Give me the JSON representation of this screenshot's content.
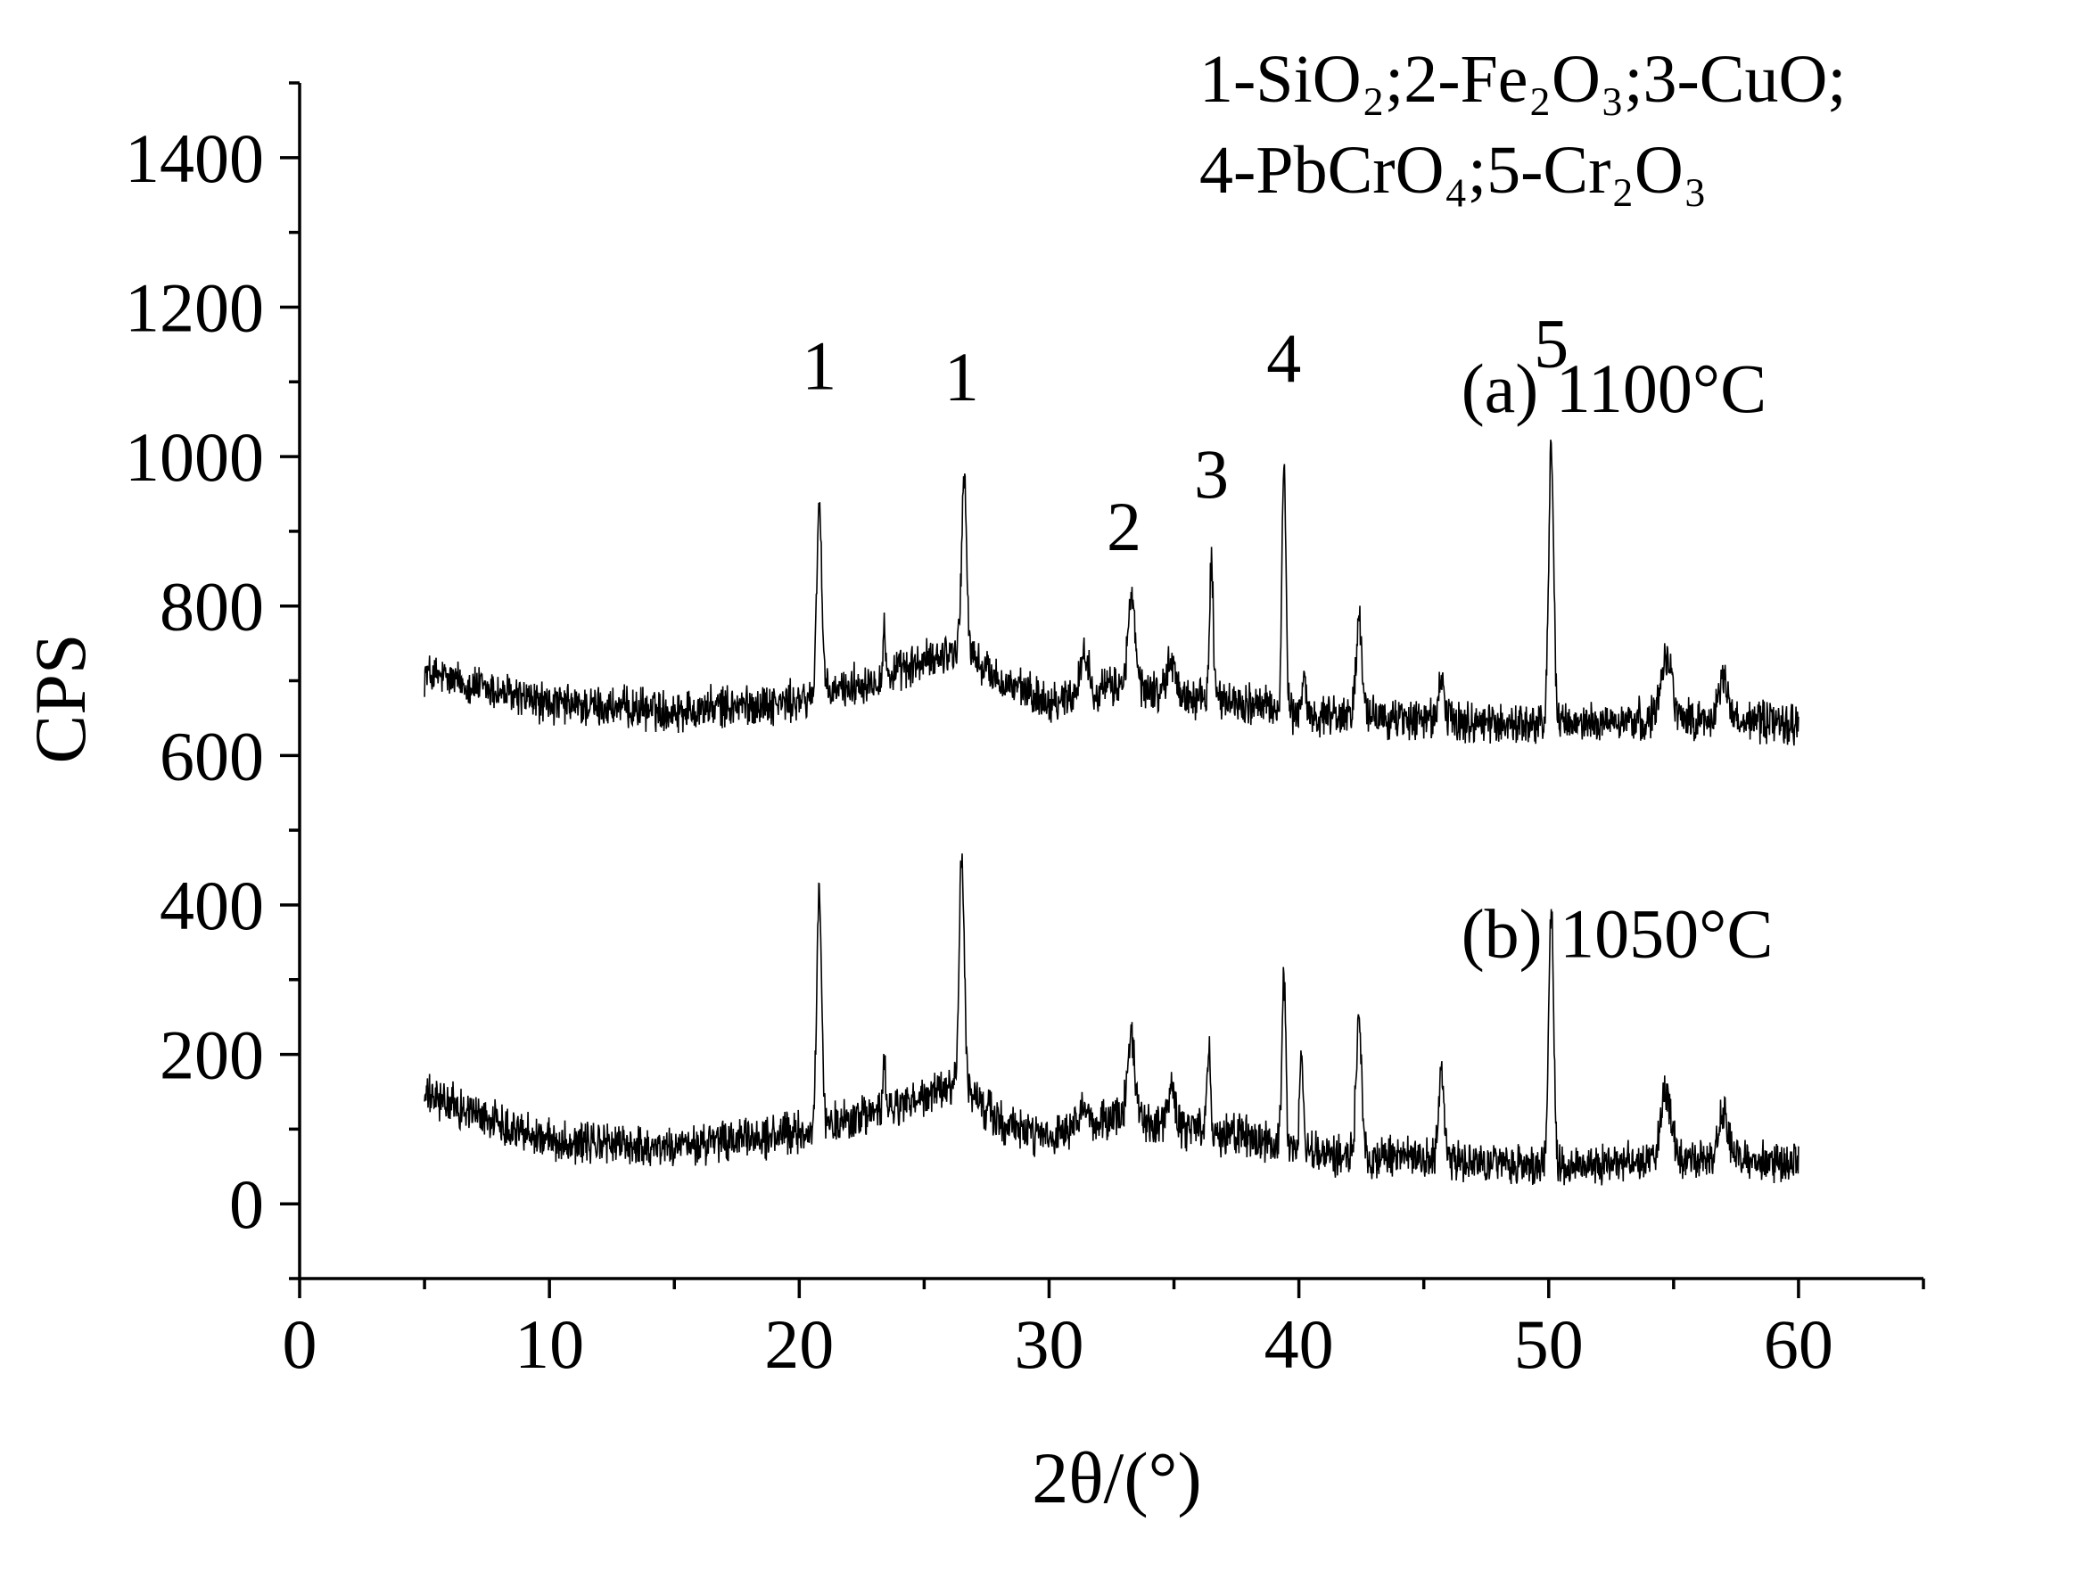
{
  "chart_data": {
    "type": "line",
    "title": "",
    "xlabel": "2θ/(°)",
    "ylabel": "CPS",
    "xlim": [
      0,
      65
    ],
    "ylim": [
      -100,
      1500
    ],
    "x_ticks": [
      0,
      10,
      20,
      30,
      40,
      50,
      60
    ],
    "y_ticks": [
      0,
      200,
      400,
      600,
      800,
      1000,
      1200,
      1400
    ],
    "grid": false,
    "legend_lines": [
      "1-SiO₂;2-Fe₂O₃;3-CuO;",
      "4-PbCrO₄;5-Cr₂O₃"
    ],
    "series": [
      {
        "name": "(a) 1100°C",
        "color": "#000000",
        "x_range": [
          5,
          60
        ],
        "baseline": [
          [
            5,
            710
          ],
          [
            10,
            668
          ],
          [
            15,
            660
          ],
          [
            20,
            672
          ],
          [
            24,
            712
          ],
          [
            26.5,
            745
          ],
          [
            28,
            700
          ],
          [
            30,
            672
          ],
          [
            33,
            695
          ],
          [
            35,
            680
          ],
          [
            38,
            670
          ],
          [
            40,
            655
          ],
          [
            45,
            648
          ],
          [
            50,
            640
          ],
          [
            55,
            650
          ],
          [
            60,
            643
          ]
        ],
        "noise_amplitude": 22,
        "peaks": [
          {
            "x": 20.8,
            "y": 940,
            "width": 0.14
          },
          {
            "x": 23.4,
            "y": 780,
            "width": 0.06
          },
          {
            "x": 26.6,
            "y": 970,
            "width": 0.14
          },
          {
            "x": 31.4,
            "y": 735,
            "width": 0.25
          },
          {
            "x": 33.3,
            "y": 810,
            "width": 0.2
          },
          {
            "x": 34.9,
            "y": 725,
            "width": 0.25
          },
          {
            "x": 36.5,
            "y": 870,
            "width": 0.1
          },
          {
            "x": 39.4,
            "y": 990,
            "width": 0.11
          },
          {
            "x": 40.2,
            "y": 710,
            "width": 0.1
          },
          {
            "x": 42.4,
            "y": 775,
            "width": 0.18
          },
          {
            "x": 45.7,
            "y": 705,
            "width": 0.15
          },
          {
            "x": 50.1,
            "y": 1020,
            "width": 0.14
          },
          {
            "x": 54.7,
            "y": 740,
            "width": 0.3
          },
          {
            "x": 57.0,
            "y": 705,
            "width": 0.25
          }
        ],
        "peak_labels": [
          {
            "text": "1",
            "x": 20.8,
            "y": 1090
          },
          {
            "text": "1",
            "x": 26.5,
            "y": 1075
          },
          {
            "text": "2",
            "x": 33.0,
            "y": 875
          },
          {
            "text": "3",
            "x": 36.5,
            "y": 945
          },
          {
            "text": "4",
            "x": 39.4,
            "y": 1100
          },
          {
            "text": "5",
            "x": 50.1,
            "y": 1120
          }
        ],
        "label_position": {
          "x": 46.5,
          "y": 1060
        }
      },
      {
        "name": "(b) 1050°C",
        "color": "#000000",
        "x_range": [
          5,
          60
        ],
        "baseline": [
          [
            5,
            145
          ],
          [
            10,
            85
          ],
          [
            15,
            75
          ],
          [
            20,
            95
          ],
          [
            24,
            130
          ],
          [
            26.5,
            160
          ],
          [
            28,
            110
          ],
          [
            30,
            85
          ],
          [
            33,
            120
          ],
          [
            35,
            100
          ],
          [
            38,
            90
          ],
          [
            40,
            70
          ],
          [
            45,
            60
          ],
          [
            50,
            50
          ],
          [
            55,
            60
          ],
          [
            60,
            55
          ]
        ],
        "noise_amplitude": 22,
        "peaks": [
          {
            "x": 20.8,
            "y": 410,
            "width": 0.14
          },
          {
            "x": 23.4,
            "y": 200,
            "width": 0.06
          },
          {
            "x": 26.5,
            "y": 470,
            "width": 0.14
          },
          {
            "x": 31.4,
            "y": 125,
            "width": 0.25
          },
          {
            "x": 33.3,
            "y": 220,
            "width": 0.2
          },
          {
            "x": 34.9,
            "y": 150,
            "width": 0.25
          },
          {
            "x": 36.4,
            "y": 220,
            "width": 0.1
          },
          {
            "x": 39.4,
            "y": 305,
            "width": 0.11
          },
          {
            "x": 40.1,
            "y": 200,
            "width": 0.1
          },
          {
            "x": 42.4,
            "y": 240,
            "width": 0.16
          },
          {
            "x": 45.7,
            "y": 175,
            "width": 0.15
          },
          {
            "x": 50.1,
            "y": 390,
            "width": 0.14
          },
          {
            "x": 54.7,
            "y": 150,
            "width": 0.3
          },
          {
            "x": 57.0,
            "y": 125,
            "width": 0.25
          }
        ],
        "peak_labels": [],
        "label_position": {
          "x": 46.5,
          "y": 330
        }
      }
    ]
  }
}
